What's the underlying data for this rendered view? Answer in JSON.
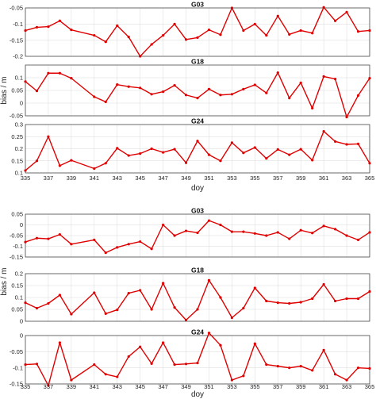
{
  "chart_data": [
    {
      "type": "line",
      "xlabel": "doy",
      "ylabel": "bias / m",
      "xlim": [
        335,
        365
      ],
      "xticks": [
        "335",
        "337",
        "339",
        "341",
        "343",
        "345",
        "347",
        "349",
        "351",
        "353",
        "355",
        "357",
        "359",
        "361",
        "363",
        "365"
      ],
      "line_color": "#e00000",
      "grid": true,
      "panels": [
        {
          "title": "G03",
          "ylim": [
            -0.2,
            -0.05
          ],
          "yticks": [
            "-0.05",
            "-0.1",
            "-0.15",
            "-0.2"
          ],
          "series": [
            {
              "x": [
                335,
                336,
                337,
                338,
                339,
                341,
                342,
                343,
                344,
                345,
                346,
                347,
                348,
                349,
                350,
                351,
                352,
                353,
                354,
                355,
                356,
                357,
                358,
                359,
                360,
                361,
                362,
                363,
                364,
                365
              ],
              "values": [
                -0.12,
                -0.11,
                -0.108,
                -0.09,
                -0.118,
                -0.135,
                -0.155,
                -0.105,
                -0.14,
                -0.2,
                -0.163,
                -0.135,
                -0.1,
                -0.148,
                -0.142,
                -0.118,
                -0.133,
                -0.05,
                -0.12,
                -0.1,
                -0.135,
                -0.075,
                -0.132,
                -0.12,
                -0.128,
                -0.048,
                -0.09,
                -0.063,
                -0.123,
                -0.12
              ]
            }
          ]
        },
        {
          "title": "G18",
          "ylim": [
            -0.05,
            0.15
          ],
          "yticks": [
            "0.1",
            "0.05",
            "0",
            "-0.05"
          ],
          "series": [
            {
              "x": [
                335,
                336,
                337,
                338,
                339,
                341,
                342,
                343,
                344,
                345,
                346,
                347,
                348,
                349,
                350,
                351,
                352,
                353,
                354,
                355,
                356,
                357,
                358,
                359,
                360,
                361,
                362,
                363,
                364,
                365
              ],
              "values": [
                0.085,
                0.048,
                0.118,
                0.118,
                0.098,
                0.025,
                0.005,
                0.073,
                0.065,
                0.06,
                0.035,
                0.045,
                0.07,
                0.032,
                0.02,
                0.055,
                0.032,
                0.035,
                0.055,
                0.072,
                0.04,
                0.12,
                0.02,
                0.08,
                -0.02,
                0.105,
                0.095,
                -0.055,
                0.03,
                0.098
              ]
            }
          ]
        },
        {
          "title": "G24",
          "ylim": [
            0.1,
            0.3
          ],
          "yticks": [
            "0.3",
            "0.25",
            "0.2",
            "0.15",
            "0.1"
          ],
          "series": [
            {
              "x": [
                335,
                336,
                337,
                338,
                339,
                341,
                342,
                343,
                344,
                345,
                346,
                347,
                348,
                349,
                350,
                351,
                352,
                353,
                354,
                355,
                356,
                357,
                358,
                359,
                360,
                361,
                362,
                363,
                364,
                365
              ],
              "values": [
                0.11,
                0.15,
                0.25,
                0.13,
                0.152,
                0.118,
                0.14,
                0.202,
                0.172,
                0.18,
                0.2,
                0.185,
                0.198,
                0.142,
                0.232,
                0.175,
                0.15,
                0.225,
                0.183,
                0.205,
                0.16,
                0.197,
                0.175,
                0.198,
                0.153,
                0.272,
                0.23,
                0.218,
                0.22,
                0.14
              ]
            }
          ]
        }
      ]
    },
    {
      "type": "line",
      "xlabel": "doy",
      "ylabel": "bias / m",
      "xlim": [
        335,
        365
      ],
      "xticks": [
        "335",
        "337",
        "339",
        "341",
        "343",
        "345",
        "347",
        "349",
        "351",
        "353",
        "355",
        "357",
        "359",
        "361",
        "363",
        "365"
      ],
      "line_color": "#e00000",
      "grid": true,
      "panels": [
        {
          "title": "G03",
          "ylim": [
            -0.15,
            0.05
          ],
          "yticks": [
            "0.05",
            "0",
            "-0.05",
            "-0.1",
            "-0.15"
          ],
          "series": [
            {
              "x": [
                335,
                336,
                337,
                338,
                339,
                341,
                342,
                343,
                344,
                345,
                346,
                347,
                348,
                349,
                350,
                351,
                352,
                353,
                354,
                355,
                356,
                357,
                358,
                359,
                360,
                361,
                362,
                363,
                364,
                365
              ],
              "values": [
                -0.08,
                -0.062,
                -0.065,
                -0.045,
                -0.09,
                -0.07,
                -0.13,
                -0.105,
                -0.09,
                -0.078,
                -0.112,
                0.0,
                -0.05,
                -0.028,
                -0.037,
                0.02,
                0.0,
                -0.032,
                -0.032,
                -0.04,
                -0.05,
                -0.035,
                -0.065,
                -0.025,
                -0.038,
                -0.005,
                -0.02,
                -0.05,
                -0.07,
                -0.035
              ]
            }
          ]
        },
        {
          "title": "G18",
          "ylim": [
            0,
            0.2
          ],
          "yticks": [
            "0.2",
            "0.15",
            "0.1",
            "0.05",
            "0"
          ],
          "series": [
            {
              "x": [
                335,
                336,
                337,
                338,
                339,
                341,
                342,
                343,
                344,
                345,
                346,
                347,
                348,
                349,
                350,
                351,
                352,
                353,
                354,
                355,
                356,
                357,
                358,
                359,
                360,
                361,
                362,
                363,
                364,
                365
              ],
              "values": [
                0.078,
                0.055,
                0.075,
                0.11,
                0.03,
                0.12,
                0.032,
                0.048,
                0.118,
                0.13,
                0.05,
                0.16,
                0.058,
                0.005,
                0.05,
                0.172,
                0.1,
                0.015,
                0.055,
                0.14,
                0.085,
                0.078,
                0.075,
                0.08,
                0.095,
                0.155,
                0.085,
                0.095,
                0.095,
                0.125
              ]
            }
          ]
        },
        {
          "title": "G24",
          "ylim": [
            -0.15,
            0.0
          ],
          "yticks": [
            "0",
            "-0.05",
            "-0.1",
            "-0.15"
          ],
          "series": [
            {
              "x": [
                335,
                336,
                337,
                338,
                339,
                341,
                342,
                343,
                344,
                345,
                346,
                347,
                348,
                349,
                350,
                351,
                352,
                353,
                354,
                355,
                356,
                357,
                358,
                359,
                360,
                361,
                362,
                363,
                364,
                365
              ],
              "values": [
                -0.09,
                -0.088,
                -0.155,
                -0.022,
                -0.138,
                -0.09,
                -0.12,
                -0.128,
                -0.065,
                -0.035,
                -0.087,
                -0.022,
                -0.09,
                -0.088,
                -0.085,
                0.008,
                -0.03,
                -0.138,
                -0.125,
                -0.025,
                -0.09,
                -0.095,
                -0.1,
                -0.095,
                -0.108,
                -0.045,
                -0.12,
                -0.138,
                -0.1,
                -0.102
              ]
            }
          ]
        }
      ]
    }
  ]
}
